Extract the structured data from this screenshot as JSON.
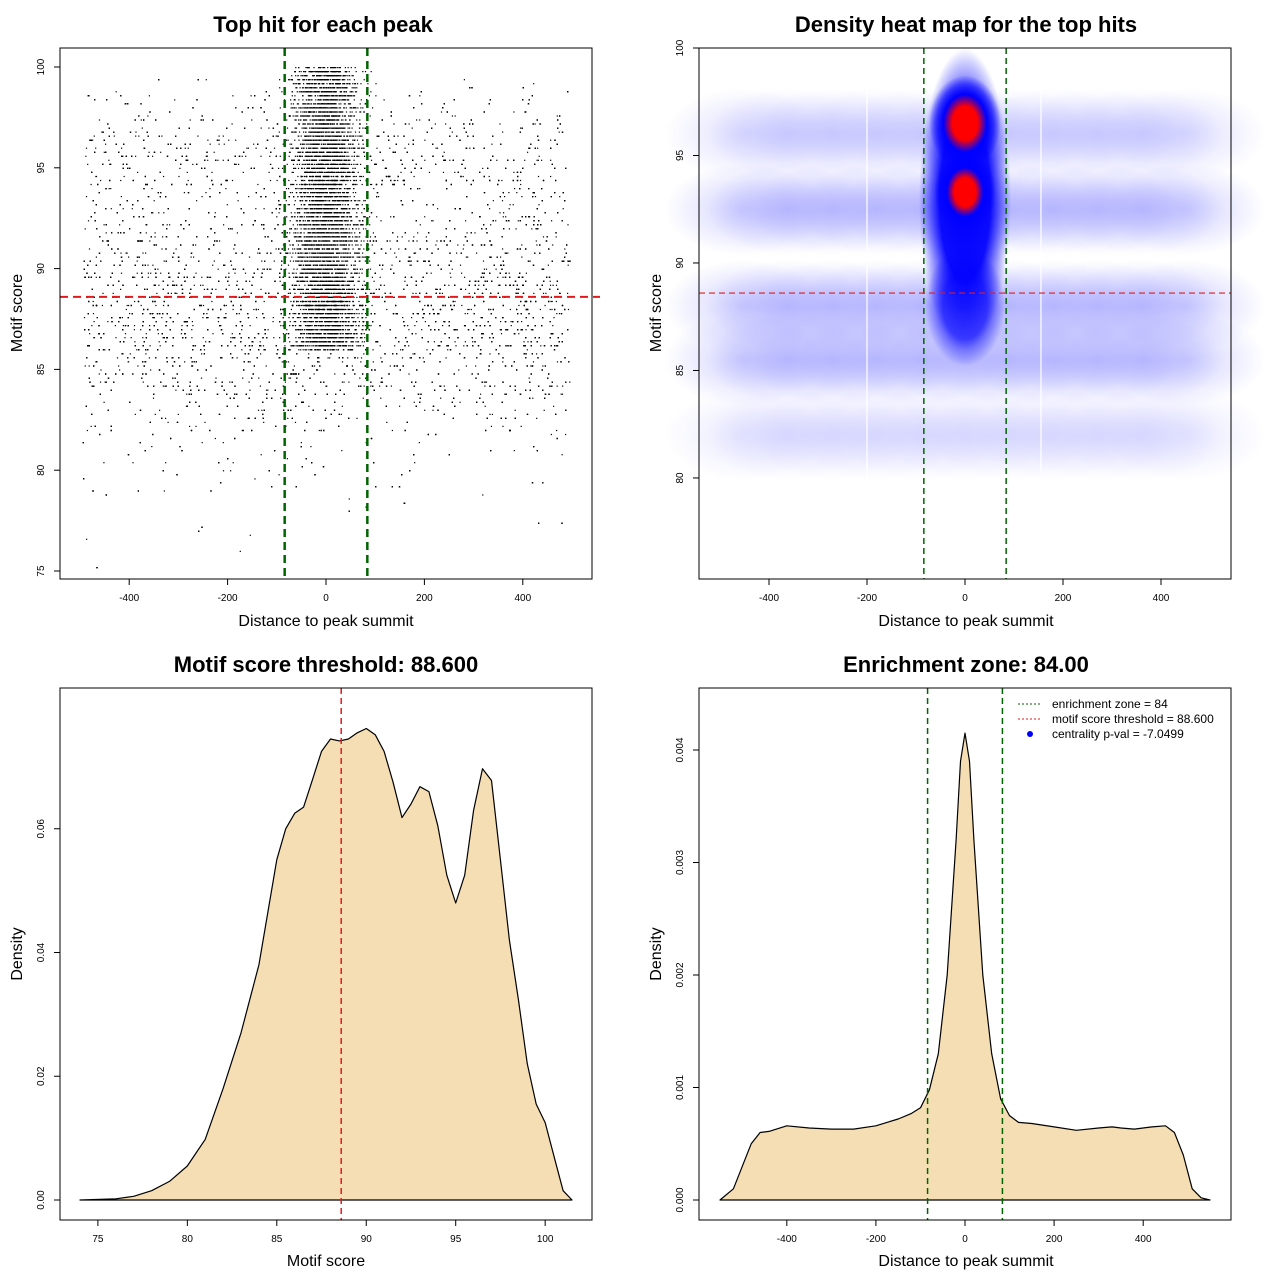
{
  "charts": [
    {
      "type": "scatter",
      "title": "Top hit for each peak",
      "xlabel": "Distance to peak summit",
      "ylabel": "Motif score",
      "xlim": [
        -500,
        500
      ],
      "ylim": [
        75,
        100
      ],
      "x_ticks": [
        "-400",
        "-200",
        "0",
        "200",
        "400"
      ],
      "y_ticks": [
        "75",
        "80",
        "85",
        "90",
        "95",
        "100"
      ],
      "vlines": [
        -84,
        84
      ],
      "hline": 88.6,
      "point_color": "#000000",
      "vline_color": "#006400",
      "hline_color": "#e31a1c",
      "points_description": "dense scatter, heavy concentration around distance 0 for scores 86-100"
    },
    {
      "type": "heatmap",
      "title": "Density heat map for the top hits",
      "xlabel": "Distance to peak summit",
      "ylabel": "Motif score",
      "xlim": [
        -500,
        500
      ],
      "ylim": [
        75,
        100
      ],
      "x_ticks": [
        "-400",
        "-200",
        "0",
        "200",
        "400"
      ],
      "y_ticks": [
        "80",
        "85",
        "90",
        "95",
        "100"
      ],
      "vlines": [
        -84,
        84
      ],
      "hline": 88.6,
      "peaks": [
        {
          "x": 0,
          "y": 96.5,
          "intensity": 1.0
        },
        {
          "x": 0,
          "y": 93.3,
          "intensity": 0.85
        }
      ],
      "low_color": "#ffffff",
      "mid_color": "#0000ff",
      "high_color": "#ff0000"
    },
    {
      "type": "area",
      "title": "Motif score threshold: 88.600",
      "xlabel": "Motif score",
      "ylabel": "Density",
      "xlim": [
        74,
        101.5
      ],
      "ylim": [
        0,
        0.08
      ],
      "x_ticks": [
        "75",
        "80",
        "85",
        "90",
        "95",
        "100"
      ],
      "y_ticks": [
        "0.00",
        "0.02",
        "0.04",
        "0.06"
      ],
      "vline": 88.6,
      "fill": "#f5deb3",
      "x": [
        74,
        76,
        77,
        78,
        79,
        80,
        81,
        82,
        83,
        84,
        85,
        85.5,
        86,
        86.5,
        87,
        87.5,
        88,
        88.5,
        89,
        89.5,
        90,
        90.5,
        91,
        91.5,
        92,
        92.5,
        93,
        93.5,
        94,
        94.5,
        95,
        95.5,
        96,
        96.5,
        97,
        97.5,
        98,
        98.5,
        99,
        99.5,
        100,
        100.5,
        101,
        101.5
      ],
      "y": [
        0.0,
        0.0002,
        0.0006,
        0.0015,
        0.003,
        0.0055,
        0.0098,
        0.018,
        0.027,
        0.038,
        0.055,
        0.06,
        0.0625,
        0.0635,
        0.068,
        0.0725,
        0.0745,
        0.0742,
        0.0745,
        0.0755,
        0.0762,
        0.0752,
        0.0725,
        0.0675,
        0.0618,
        0.064,
        0.0668,
        0.066,
        0.0605,
        0.0525,
        0.048,
        0.0525,
        0.063,
        0.0697,
        0.0678,
        0.055,
        0.042,
        0.0325,
        0.022,
        0.0155,
        0.0125,
        0.007,
        0.0015,
        0.0
      ]
    },
    {
      "type": "area",
      "title": "Enrichment zone: 84.00",
      "xlabel": "Distance to peak summit",
      "ylabel": "Density",
      "xlim": [
        -550,
        550
      ],
      "ylim": [
        0,
        0.0044
      ],
      "x_ticks": [
        "-400",
        "-200",
        "0",
        "200",
        "400"
      ],
      "y_ticks": [
        "0.000",
        "0.001",
        "0.002",
        "0.003",
        "0.004"
      ],
      "vlines": [
        -84,
        84
      ],
      "fill": "#f5deb3",
      "x": [
        -550,
        -520,
        -500,
        -480,
        -460,
        -440,
        -400,
        -350,
        -300,
        -250,
        -200,
        -150,
        -120,
        -100,
        -80,
        -60,
        -40,
        -20,
        -10,
        0,
        10,
        20,
        40,
        60,
        80,
        100,
        120,
        150,
        200,
        250,
        300,
        330,
        350,
        380,
        420,
        450,
        470,
        490,
        510,
        530,
        550
      ],
      "y": [
        0.0,
        0.0001,
        0.0003,
        0.0005,
        0.0006,
        0.00061,
        0.00066,
        0.00064,
        0.00063,
        0.00063,
        0.00066,
        0.00072,
        0.00077,
        0.00082,
        0.00098,
        0.0013,
        0.002,
        0.0032,
        0.0039,
        0.00415,
        0.0039,
        0.0032,
        0.002,
        0.0013,
        0.0009,
        0.00075,
        0.00069,
        0.00068,
        0.00065,
        0.00062,
        0.00064,
        0.00065,
        0.00064,
        0.00063,
        0.00065,
        0.00066,
        0.0006,
        0.0004,
        0.0001,
        2e-05,
        0.0
      ],
      "legend": [
        {
          "label": "enrichment zone = 84",
          "color": "#006400",
          "style": "line"
        },
        {
          "label": "motif score threshold = 88.600",
          "color": "#e31a1c",
          "style": "line"
        },
        {
          "label": "centrality p-val = -7.0499",
          "color": "#0000ff",
          "style": "point"
        }
      ],
      "legend_position": "top-right"
    }
  ]
}
